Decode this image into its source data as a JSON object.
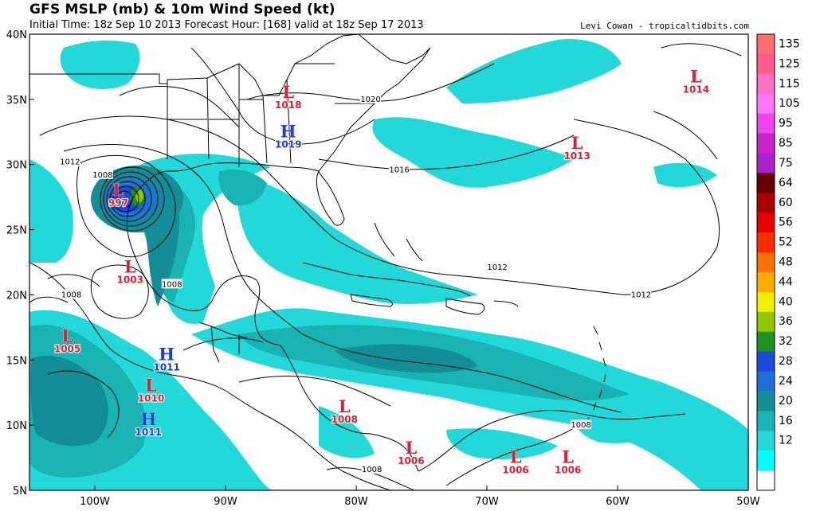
{
  "header": {
    "title": "GFS MSLP (mb) & 10m Wind Speed (kt)",
    "subtitle": "Initial Time: 18z Sep 10 2013 Forecast Hour: [168] valid at 18z Sep 17 2013",
    "credit": "Levi Cowan - tropicaltidbits.com"
  },
  "map": {
    "lon_range": [
      -105,
      -50
    ],
    "lat_range": [
      5,
      40
    ],
    "lat_ticks": [
      "40N",
      "35N",
      "30N",
      "25N",
      "20N",
      "15N",
      "10N",
      "5N"
    ],
    "lon_ticks": [
      "100W",
      "90W",
      "80W",
      "70W",
      "60W",
      "50W"
    ]
  },
  "colorbar": {
    "labels": [
      "135",
      "125",
      "115",
      "105",
      "95",
      "85",
      "75",
      "64",
      "60",
      "56",
      "52",
      "48",
      "44",
      "40",
      "36",
      "32",
      "28",
      "24",
      "20",
      "16",
      "12"
    ],
    "colors": [
      "#ff6f6f",
      "#ff5c8c",
      "#ff6fc8",
      "#ff78ff",
      "#ee44ee",
      "#cc22cc",
      "#aa22cc",
      "#660000",
      "#a80000",
      "#e60000",
      "#ff2a00",
      "#ff7000",
      "#ffaa00",
      "#f0f000",
      "#90c800",
      "#209020",
      "#1a4bdc",
      "#1f6fd6",
      "#138d96",
      "#19b3b3",
      "#22d8d8",
      "#00ffff",
      "#ffffff"
    ]
  },
  "pressure_centers": [
    {
      "type": "L",
      "value": "997",
      "lon": -98.2,
      "lat": 27.6
    },
    {
      "type": "L",
      "value": "1003",
      "lon": -97.3,
      "lat": 21.7
    },
    {
      "type": "L",
      "value": "1005",
      "lon": -102.1,
      "lat": 16.4
    },
    {
      "type": "H",
      "value": "1011",
      "lon": -94.5,
      "lat": 15.0
    },
    {
      "type": "L",
      "value": "1010",
      "lon": -95.7,
      "lat": 12.6
    },
    {
      "type": "H",
      "value": "1011",
      "lon": -95.9,
      "lat": 10.0
    },
    {
      "type": "L",
      "value": "1008",
      "lon": -80.9,
      "lat": 11.0
    },
    {
      "type": "L",
      "value": "1006",
      "lon": -75.8,
      "lat": 7.8
    },
    {
      "type": "L",
      "value": "1006",
      "lon": -67.8,
      "lat": 7.1
    },
    {
      "type": "L",
      "value": "1006",
      "lon": -63.8,
      "lat": 7.1
    },
    {
      "type": "L",
      "value": "1018",
      "lon": -85.2,
      "lat": 35.1
    },
    {
      "type": "H",
      "value": "1019",
      "lon": -85.2,
      "lat": 32.1
    },
    {
      "type": "L",
      "value": "1013",
      "lon": -63.1,
      "lat": 31.2
    },
    {
      "type": "L",
      "value": "1014",
      "lon": -54.0,
      "lat": 36.3
    }
  ],
  "isobar_labels": [
    {
      "text": "1020",
      "lon": -78.9,
      "lat": 35.0
    },
    {
      "text": "1016",
      "lon": -76.7,
      "lat": 29.6
    },
    {
      "text": "1012",
      "lon": -101.9,
      "lat": 30.2
    },
    {
      "text": "1008",
      "lon": -99.4,
      "lat": 29.2
    },
    {
      "text": "1008",
      "lon": -94.1,
      "lat": 20.8
    },
    {
      "text": "1008",
      "lon": -101.8,
      "lat": 20.0
    },
    {
      "text": "1012",
      "lon": -69.2,
      "lat": 22.1
    },
    {
      "text": "1012",
      "lon": -58.2,
      "lat": 20.0
    },
    {
      "text": "1008",
      "lon": -62.8,
      "lat": 10.0
    },
    {
      "text": "1008",
      "lon": -78.8,
      "lat": 6.6
    }
  ]
}
